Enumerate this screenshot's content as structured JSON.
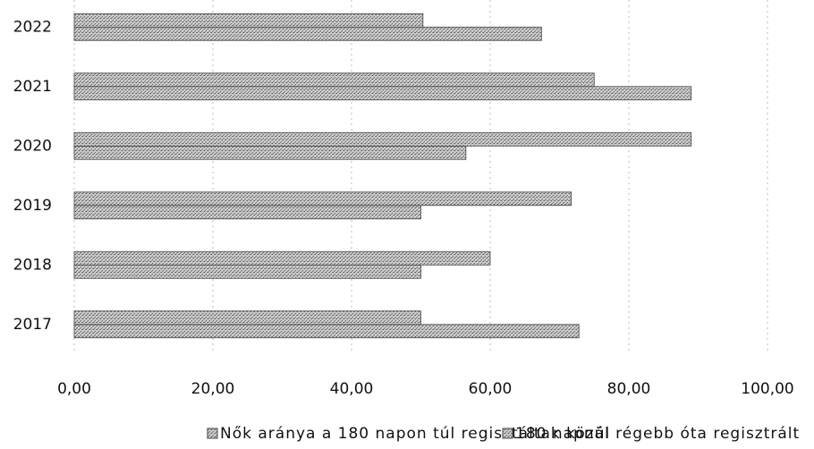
{
  "chart_data": {
    "type": "bar",
    "orientation": "horizontal",
    "categories": [
      "2017",
      "2018",
      "2019",
      "2020",
      "2021",
      "2022"
    ],
    "series": [
      {
        "name": "Nők aránya a 180 napon túl regisztáltak közül",
        "color": "#9a9a9a",
        "values": [
          72.8,
          50,
          50,
          56.5,
          89,
          67.4
        ]
      },
      {
        "name": "180 napnál régebb óta regisztrált",
        "color": "#a8a8a8",
        "values": [
          50,
          60,
          71.7,
          89,
          75,
          50.3
        ]
      }
    ],
    "xlim": [
      0,
      100
    ],
    "xticks": [
      {
        "value": 0,
        "label": "0,00"
      },
      {
        "value": 20,
        "label": "20,00"
      },
      {
        "value": 40,
        "label": "40,00"
      },
      {
        "value": 60,
        "label": "60,00"
      },
      {
        "value": 80,
        "label": "80,00"
      },
      {
        "value": 100,
        "label": "100,00"
      }
    ],
    "grid": true,
    "legend": "bottom"
  }
}
